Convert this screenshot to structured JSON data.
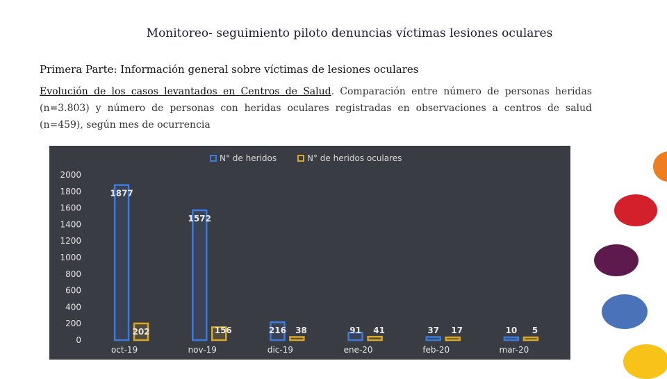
{
  "slide": {
    "title": "Monitoreo- seguimiento piloto denuncias víctimas lesiones oculares",
    "subtitle": "Primera Parte: Información general sobre víctimas de lesiones oculares",
    "desc_link": "Evolución de los casos levantados en Centros de Salud",
    "desc_rest": ". Comparación entre número de personas heridas (n=3.803) y número de personas con heridas oculares registradas en observaciones a centros de salud (n=459), según mes de ocurrencia"
  },
  "decor_colors": [
    "#ef7d22",
    "#d3202a",
    "#5e1a4d",
    "#4a72b8",
    "#f7c318"
  ],
  "chart_data": {
    "type": "bar",
    "categories": [
      "oct-19",
      "nov-19",
      "dic-19",
      "ene-20",
      "feb-20",
      "mar-20"
    ],
    "series": [
      {
        "name": "N° de heridos",
        "values": [
          1877,
          1572,
          216,
          91,
          37,
          10
        ],
        "color": "#3b7be0"
      },
      {
        "name": "N° de heridos oculares",
        "values": [
          202,
          156,
          38,
          41,
          17,
          5
        ],
        "color": "#d9a820"
      }
    ],
    "ylim": [
      0,
      2000
    ],
    "yticks": [
      0,
      200,
      400,
      600,
      800,
      1000,
      1200,
      1400,
      1600,
      1800,
      2000
    ],
    "legend": "top-center",
    "background": "#3a3c43"
  }
}
